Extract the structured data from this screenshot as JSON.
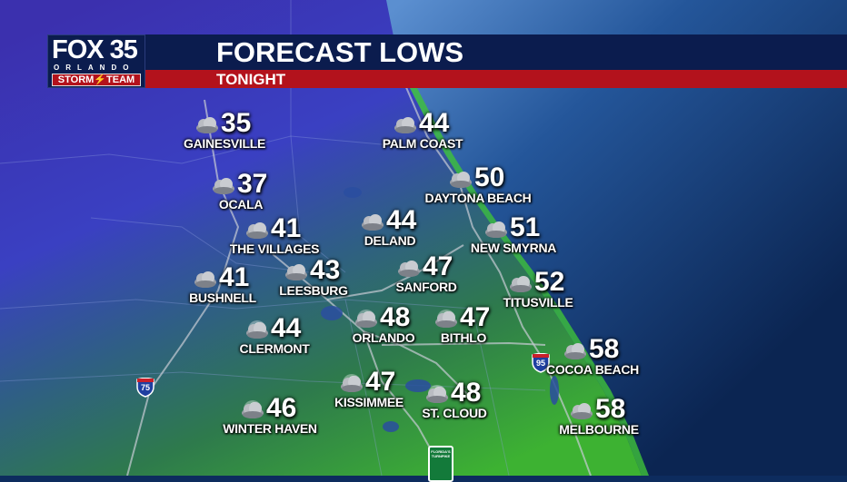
{
  "header": {
    "logo": {
      "station": "FOX 35",
      "city": "ORLANDO",
      "team": "STORM⚡TEAM"
    },
    "title": "FORECAST LOWS",
    "subtitle": "TONIGHT"
  },
  "colors": {
    "header_navy": "#0b1c4e",
    "header_red": "#b3121c",
    "ocean": "#0d2c5e",
    "land_cold": "#3b32b0",
    "land_warm": "#3cb030"
  },
  "cities": [
    {
      "name": "GAINESVILLE",
      "temp": "35",
      "icon": "cloudy-icon"
    },
    {
      "name": "PALM COAST",
      "temp": "44",
      "icon": "cloudy-icon"
    },
    {
      "name": "OCALA",
      "temp": "37",
      "icon": "cloudy-icon"
    },
    {
      "name": "DAYTONA BEACH",
      "temp": "50",
      "icon": "cloudy-icon"
    },
    {
      "name": "THE VILLAGES",
      "temp": "41",
      "icon": "cloudy-icon"
    },
    {
      "name": "DELAND",
      "temp": "44",
      "icon": "cloudy-icon"
    },
    {
      "name": "NEW SMYRNA",
      "temp": "51",
      "icon": "cloudy-icon"
    },
    {
      "name": "BUSHNELL",
      "temp": "41",
      "icon": "cloudy-icon"
    },
    {
      "name": "LEESBURG",
      "temp": "43",
      "icon": "cloudy-icon"
    },
    {
      "name": "SANFORD",
      "temp": "47",
      "icon": "cloudy-icon"
    },
    {
      "name": "TITUSVILLE",
      "temp": "52",
      "icon": "cloudy-icon"
    },
    {
      "name": "CLERMONT",
      "temp": "44",
      "icon": "partly-cloudy-night-icon"
    },
    {
      "name": "ORLANDO",
      "temp": "48",
      "icon": "partly-cloudy-night-icon"
    },
    {
      "name": "BITHLO",
      "temp": "47",
      "icon": "partly-cloudy-night-icon"
    },
    {
      "name": "COCOA BEACH",
      "temp": "58",
      "icon": "cloudy-icon"
    },
    {
      "name": "KISSIMMEE",
      "temp": "47",
      "icon": "partly-cloudy-night-icon"
    },
    {
      "name": "ST. CLOUD",
      "temp": "48",
      "icon": "partly-cloudy-night-icon"
    },
    {
      "name": "WINTER HAVEN",
      "temp": "46",
      "icon": "partly-cloudy-night-icon"
    },
    {
      "name": "MELBOURNE",
      "temp": "58",
      "icon": "cloudy-icon"
    }
  ],
  "highways": [
    {
      "label": "75"
    },
    {
      "label": "95"
    }
  ],
  "turnpike_sign": "FLORIDA'S TURNPIKE"
}
